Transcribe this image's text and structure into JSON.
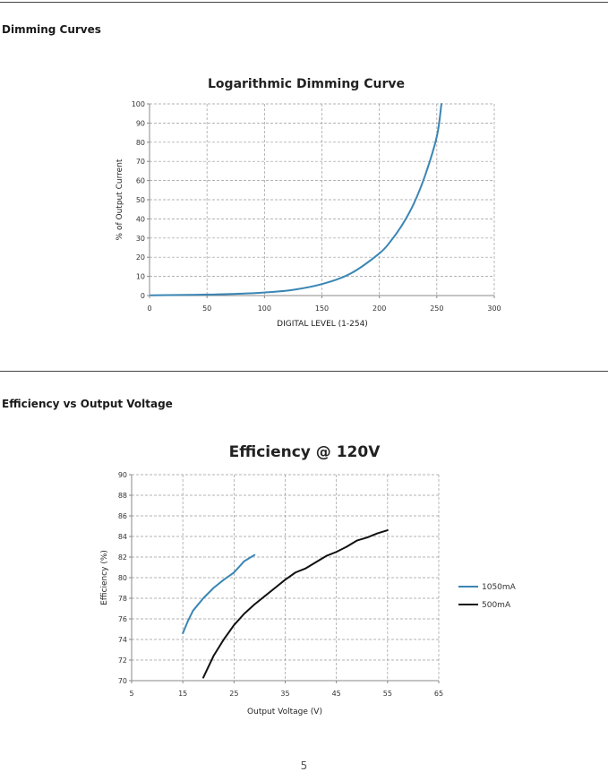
{
  "sections": {
    "dimming": {
      "heading": "Dimming Curves"
    },
    "efficiency": {
      "heading": "Efficiency vs Output Voltage"
    }
  },
  "page_number": "5",
  "chart_data": [
    {
      "type": "line",
      "title": "Logarithmic Dimming Curve",
      "xlabel": "DIGITAL LEVEL (1-254)",
      "ylabel": "% of Output Current",
      "xlim": [
        0,
        300
      ],
      "ylim": [
        0,
        100
      ],
      "xticks": [
        0,
        50,
        100,
        150,
        200,
        250,
        300
      ],
      "yticks": [
        0,
        10,
        20,
        30,
        40,
        50,
        60,
        70,
        80,
        90,
        100
      ],
      "grid": true,
      "series": [
        {
          "color": "#3a86b4",
          "x": [
            1,
            25,
            50,
            75,
            100,
            125,
            150,
            175,
            200,
            210,
            220,
            230,
            240,
            250,
            254
          ],
          "y": [
            0.1,
            0.3,
            0.5,
            0.9,
            1.6,
            3,
            6,
            11.5,
            22,
            28.5,
            37,
            48,
            63,
            83,
            100
          ]
        }
      ]
    },
    {
      "type": "line",
      "title": "Efficiency @ 120V",
      "xlabel": "Output Voltage (V)",
      "ylabel": "Efficiency (%)",
      "xlim": [
        5,
        65
      ],
      "ylim": [
        70,
        90
      ],
      "xticks": [
        5,
        15,
        25,
        35,
        45,
        55,
        65
      ],
      "yticks": [
        70,
        72,
        74,
        76,
        78,
        80,
        82,
        84,
        86,
        88,
        90
      ],
      "grid": true,
      "legend": "right",
      "series": [
        {
          "name": "1050mA",
          "color": "#3a86b4",
          "x": [
            15,
            16,
            17,
            19,
            21,
            23,
            25,
            27,
            29
          ],
          "y": [
            74.6,
            75.8,
            76.8,
            78.0,
            79.0,
            79.8,
            80.5,
            81.6,
            82.2
          ]
        },
        {
          "name": "500mA",
          "color": "#111111",
          "x": [
            19,
            21,
            23,
            25,
            27,
            29,
            31,
            33,
            35,
            37,
            39,
            41,
            43,
            45,
            47,
            49,
            51,
            53,
            55
          ],
          "y": [
            70.3,
            72.4,
            74.0,
            75.4,
            76.5,
            77.4,
            78.2,
            79.0,
            79.8,
            80.5,
            80.9,
            81.5,
            82.1,
            82.5,
            83.0,
            83.6,
            83.9,
            84.3,
            84.6
          ]
        }
      ]
    }
  ]
}
